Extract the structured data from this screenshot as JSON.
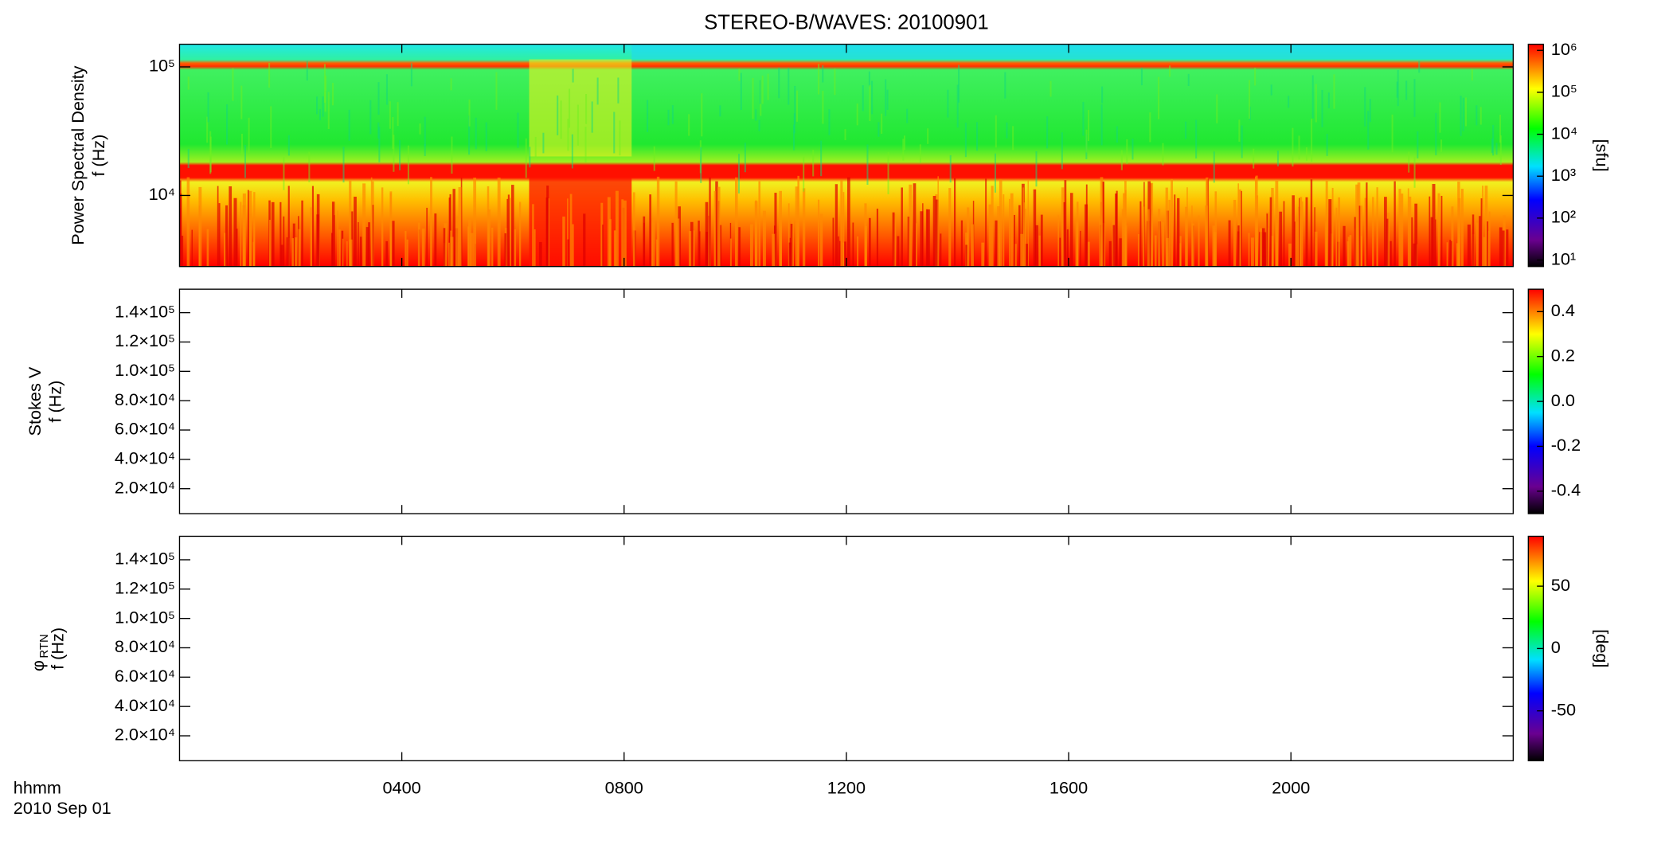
{
  "chart_data": [
    {
      "type": "spectrogram",
      "title": "STEREO-B/WAVES: 20100901",
      "y_label": [
        "Power Spectral Density",
        "f (Hz)"
      ],
      "ylog": true,
      "ylim": [
        2800,
        150000
      ],
      "yticks": [
        {
          "value": 10000,
          "label": "10⁴"
        },
        {
          "value": 100000,
          "label": "10⁵"
        }
      ],
      "colorbar": {
        "log": true,
        "clim": [
          7,
          1400000
        ],
        "label": "[sfu]",
        "ticks": [
          {
            "value": 10,
            "label": "10¹"
          },
          {
            "value": 100,
            "label": "10²"
          },
          {
            "value": 1000,
            "label": "10³"
          },
          {
            "value": 10000,
            "label": "10⁴"
          },
          {
            "value": 100000,
            "label": "10⁵"
          },
          {
            "value": 1000000,
            "label": "10⁶"
          }
        ]
      }
    },
    {
      "type": "spectrogram",
      "y_label": [
        "Stokes V",
        "f (Hz)"
      ],
      "ylog": false,
      "ylim": [
        3000,
        156000
      ],
      "yticks": [
        {
          "value": 20000,
          "label": "2.0×10⁴"
        },
        {
          "value": 40000,
          "label": "4.0×10⁴"
        },
        {
          "value": 60000,
          "label": "6.0×10⁴"
        },
        {
          "value": 80000,
          "label": "8.0×10⁴"
        },
        {
          "value": 100000,
          "label": "1.0×10⁵"
        },
        {
          "value": 120000,
          "label": "1.2×10⁵"
        },
        {
          "value": 140000,
          "label": "1.4×10⁵"
        }
      ],
      "colorbar": {
        "log": false,
        "clim": [
          -0.5,
          0.5
        ],
        "ticks": [
          -0.4,
          -0.2,
          {
            "value": 0,
            "label": "0.0"
          },
          0.2,
          0.4
        ]
      }
    },
    {
      "type": "spectrogram",
      "y_label_symbol": "φ",
      "y_label_subscript": "RTN",
      "y_label": [
        "f (Hz)"
      ],
      "ylog": false,
      "ylim": [
        3000,
        156000
      ],
      "yticks": [
        {
          "value": 20000,
          "label": "2.0×10⁴"
        },
        {
          "value": 40000,
          "label": "4.0×10⁴"
        },
        {
          "value": 60000,
          "label": "6.0×10⁴"
        },
        {
          "value": 80000,
          "label": "8.0×10⁴"
        },
        {
          "value": 100000,
          "label": "1.0×10⁵"
        },
        {
          "value": 120000,
          "label": "1.2×10⁵"
        },
        {
          "value": 140000,
          "label": "1.4×10⁵"
        }
      ],
      "colorbar": {
        "log": false,
        "clim": [
          -90,
          90
        ],
        "label": "[deg]",
        "ticks": [
          -50,
          0,
          50
        ]
      }
    }
  ],
  "x_axis": {
    "xlim": [
      0,
      24
    ],
    "label": "hhmm",
    "date": "2010 Sep 01",
    "xticks": [
      {
        "value": 4,
        "label": "0400"
      },
      {
        "value": 8,
        "label": "0800"
      },
      {
        "value": 12,
        "label": "1200"
      },
      {
        "value": 16,
        "label": "1600"
      },
      {
        "value": 20,
        "label": "2000"
      }
    ]
  }
}
